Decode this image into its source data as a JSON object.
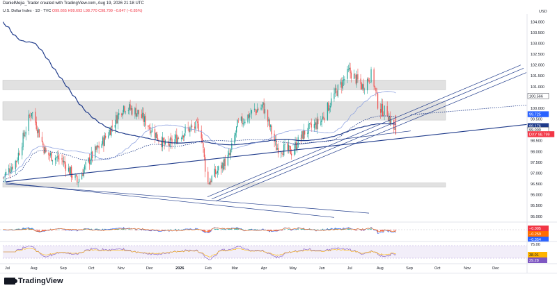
{
  "header": {
    "author_line": "DanielMejia_Trader created with TradingView.com, Aug 19, 2026 21:18 UTC",
    "symbol": "U.S. Dollar Index · 1D · TVC",
    "ohlc": "O99.665 H99.693 L98.770 C98.799 −0.847 (−0.85%)",
    "currency": "USD",
    "logo_text": "TradingView"
  },
  "colors": {
    "up": "#26a69a",
    "down": "#ef5350",
    "trendline": "#1e3a8a",
    "ma_long": "#1e3a8a",
    "ma_short": "#90a4e0",
    "zone": "#dcdcdc",
    "macd_line": "#2962ff",
    "signal_line": "#ff6d00",
    "rsi_line": "#7e57c2"
  },
  "chart_data": [
    {
      "type": "candlestick",
      "panel": "price",
      "y_axis_ticks": [
        "104.000",
        "103.500",
        "103.000",
        "102.500",
        "102.000",
        "101.500",
        "101.000",
        "100.500",
        "100.000",
        "99.500",
        "99.000",
        "98.500",
        "98.000",
        "97.500",
        "97.000",
        "96.500",
        "96.000",
        "95.500",
        "95.000"
      ],
      "x_axis_ticks": [
        "Jul",
        "Aug",
        "Sep",
        "Oct",
        "Nov",
        "Dec",
        "2026",
        "Feb",
        "Mar",
        "Apr",
        "May",
        "Jun",
        "Jul",
        "Aug",
        "Sep",
        "Oct",
        "Nov",
        "Dec"
      ],
      "ylim": [
        94.8,
        104.3
      ],
      "close_series": [
        {
          "date": "2025-07-01",
          "close": 96.8
        },
        {
          "date": "2025-07-15",
          "close": 97.6
        },
        {
          "date": "2025-07-31",
          "close": 99.9
        },
        {
          "date": "2025-08-15",
          "close": 97.9
        },
        {
          "date": "2025-09-01",
          "close": 97.6
        },
        {
          "date": "2025-09-17",
          "close": 96.6
        },
        {
          "date": "2025-10-01",
          "close": 97.7
        },
        {
          "date": "2025-10-15",
          "close": 98.5
        },
        {
          "date": "2025-11-05",
          "close": 100.1
        },
        {
          "date": "2025-11-20",
          "close": 99.8
        },
        {
          "date": "2025-12-05",
          "close": 99.0
        },
        {
          "date": "2025-12-20",
          "close": 98.2
        },
        {
          "date": "2026-01-10",
          "close": 99.0
        },
        {
          "date": "2026-01-25",
          "close": 99.2
        },
        {
          "date": "2026-02-01",
          "close": 96.5
        },
        {
          "date": "2026-02-10",
          "close": 97.0
        },
        {
          "date": "2026-02-25",
          "close": 97.8
        },
        {
          "date": "2026-03-05",
          "close": 99.2
        },
        {
          "date": "2026-03-20",
          "close": 99.8
        },
        {
          "date": "2026-04-01",
          "close": 100.1
        },
        {
          "date": "2026-04-15",
          "close": 98.2
        },
        {
          "date": "2026-05-01",
          "close": 98.0
        },
        {
          "date": "2026-05-15",
          "close": 98.9
        },
        {
          "date": "2026-06-01",
          "close": 99.4
        },
        {
          "date": "2026-06-15",
          "close": 100.6
        },
        {
          "date": "2026-07-01",
          "close": 101.7
        },
        {
          "date": "2026-07-15",
          "close": 101.0
        },
        {
          "date": "2026-07-25",
          "close": 101.6
        },
        {
          "date": "2026-08-01",
          "close": 100.0
        },
        {
          "date": "2026-08-10",
          "close": 99.8
        },
        {
          "date": "2026-08-19",
          "close": 98.799
        }
      ],
      "price_badges": [
        {
          "label": "100.566",
          "color": "#ffffff",
          "text_color": "#131722"
        },
        {
          "label": "99.725",
          "color": "#2962ff",
          "text_color": "#ffffff"
        },
        {
          "label": "99.176",
          "color": "#1e3a8a",
          "text_color": "#ffffff"
        },
        {
          "label": "99.000",
          "color": "#ffffff",
          "text_color": "#131722"
        },
        {
          "label": "DXY 98.799",
          "color": "#f23645",
          "text_color": "#ffffff"
        }
      ]
    },
    {
      "type": "histogram",
      "panel": "macd",
      "value_badges": [
        {
          "label": "−0.095",
          "color": "#f23645"
        },
        {
          "label": "−0.259",
          "color": "#ff6d00"
        },
        {
          "label": "−0.354",
          "color": "#2962ff"
        }
      ]
    },
    {
      "type": "line",
      "panel": "rsi",
      "y_axis_ticks": [
        "75.00"
      ],
      "value_badges": [
        {
          "label": "38.01",
          "color": "#ffb300"
        },
        {
          "label": "29.28",
          "color": "#7e57c2"
        }
      ]
    }
  ]
}
